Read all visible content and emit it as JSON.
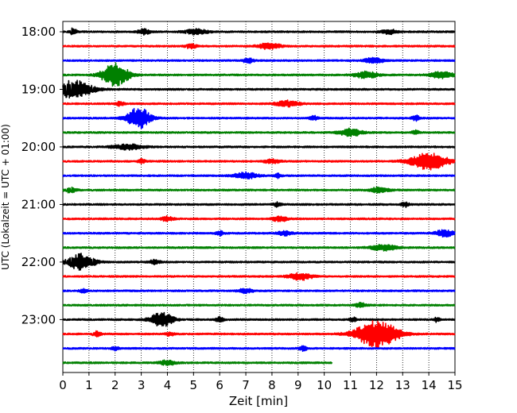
{
  "chart_data": {
    "type": "line",
    "title": "",
    "xlabel": "Zeit  [min]",
    "ylabel": "UTC (Lokalzeit = UTC + 01:00)",
    "xlim": [
      0,
      15
    ],
    "x_ticks": [
      0,
      1,
      2,
      3,
      4,
      5,
      6,
      7,
      8,
      9,
      10,
      11,
      12,
      13,
      14,
      15
    ],
    "y_ticks": [
      "18:00",
      "19:00",
      "20:00",
      "21:00",
      "22:00",
      "23:00"
    ],
    "grid": "vertical dotted lines at each minute",
    "legend": "none",
    "color_cycle": [
      "#000000",
      "#ff0000",
      "#0000ff",
      "#008000"
    ],
    "trace_interval_min": 15,
    "traces": [
      {
        "start": "18:00",
        "end_min": 15,
        "events": [
          [
            0.4,
            0.5,
            0.08
          ],
          [
            3.1,
            0.4,
            0.15
          ],
          [
            5.1,
            0.35,
            0.3
          ],
          [
            12.5,
            0.3,
            0.2
          ]
        ]
      },
      {
        "start": "18:15",
        "end_min": 15,
        "events": [
          [
            4.9,
            0.3,
            0.15
          ],
          [
            7.9,
            0.4,
            0.3
          ]
        ]
      },
      {
        "start": "18:30",
        "end_min": 15,
        "events": [
          [
            7.1,
            0.3,
            0.15
          ],
          [
            11.9,
            0.4,
            0.25
          ]
        ]
      },
      {
        "start": "18:45",
        "end_min": 15,
        "events": [
          [
            2.0,
            1.6,
            0.35
          ],
          [
            11.6,
            0.45,
            0.3
          ],
          [
            14.5,
            0.45,
            0.3
          ]
        ]
      },
      {
        "start": "19:00",
        "end_min": 15,
        "events": [
          [
            0.4,
            1.2,
            0.5
          ]
        ]
      },
      {
        "start": "19:15",
        "end_min": 15,
        "events": [
          [
            2.2,
            0.3,
            0.1
          ],
          [
            8.6,
            0.4,
            0.3
          ]
        ]
      },
      {
        "start": "19:30",
        "end_min": 15,
        "events": [
          [
            2.9,
            1.5,
            0.3
          ],
          [
            9.6,
            0.3,
            0.1
          ],
          [
            13.5,
            0.35,
            0.1
          ]
        ]
      },
      {
        "start": "19:45",
        "end_min": 15,
        "events": [
          [
            11.0,
            0.5,
            0.3
          ],
          [
            13.5,
            0.25,
            0.1
          ]
        ]
      },
      {
        "start": "20:00",
        "end_min": 15,
        "events": [
          [
            2.5,
            0.35,
            0.4
          ]
        ]
      },
      {
        "start": "20:15",
        "end_min": 15,
        "events": [
          [
            3.0,
            0.3,
            0.1
          ],
          [
            8.0,
            0.3,
            0.2
          ],
          [
            14.0,
            1.1,
            0.5
          ]
        ]
      },
      {
        "start": "20:30",
        "end_min": 15,
        "events": [
          [
            7.0,
            0.45,
            0.3
          ],
          [
            8.2,
            0.3,
            0.1
          ]
        ]
      },
      {
        "start": "20:45",
        "end_min": 15,
        "events": [
          [
            0.3,
            0.35,
            0.15
          ],
          [
            12.1,
            0.35,
            0.25
          ]
        ]
      },
      {
        "start": "21:00",
        "end_min": 15,
        "events": [
          [
            8.2,
            0.3,
            0.1
          ],
          [
            13.1,
            0.3,
            0.1
          ]
        ]
      },
      {
        "start": "21:15",
        "end_min": 15,
        "events": [
          [
            4.0,
            0.35,
            0.15
          ],
          [
            8.3,
            0.35,
            0.2
          ]
        ]
      },
      {
        "start": "21:30",
        "end_min": 15,
        "events": [
          [
            6.0,
            0.3,
            0.1
          ],
          [
            8.5,
            0.3,
            0.2
          ],
          [
            14.6,
            0.45,
            0.25
          ]
        ]
      },
      {
        "start": "21:45",
        "end_min": 15,
        "events": [
          [
            12.3,
            0.4,
            0.35
          ]
        ]
      },
      {
        "start": "22:00",
        "end_min": 15,
        "events": [
          [
            0.7,
            1.1,
            0.35
          ],
          [
            3.5,
            0.3,
            0.15
          ]
        ]
      },
      {
        "start": "22:15",
        "end_min": 15,
        "events": [
          [
            9.1,
            0.5,
            0.3
          ]
        ]
      },
      {
        "start": "22:30",
        "end_min": 15,
        "events": [
          [
            0.8,
            0.25,
            0.1
          ],
          [
            7.0,
            0.3,
            0.2
          ]
        ]
      },
      {
        "start": "22:45",
        "end_min": 15,
        "events": [
          [
            11.4,
            0.3,
            0.15
          ]
        ]
      },
      {
        "start": "23:00",
        "end_min": 15,
        "events": [
          [
            3.8,
            1.0,
            0.3
          ],
          [
            6.0,
            0.35,
            0.1
          ],
          [
            11.1,
            0.3,
            0.08
          ],
          [
            14.3,
            0.3,
            0.08
          ]
        ]
      },
      {
        "start": "23:15",
        "end_min": 15,
        "events": [
          [
            1.3,
            0.35,
            0.1
          ],
          [
            4.1,
            0.3,
            0.1
          ],
          [
            12.0,
            1.9,
            0.55
          ]
        ]
      },
      {
        "start": "23:30",
        "end_min": 15,
        "events": [
          [
            2.0,
            0.25,
            0.1
          ],
          [
            9.2,
            0.3,
            0.1
          ]
        ]
      },
      {
        "start": "23:45",
        "end_min": 10.3,
        "events": [
          [
            4.0,
            0.35,
            0.2
          ]
        ]
      }
    ]
  }
}
